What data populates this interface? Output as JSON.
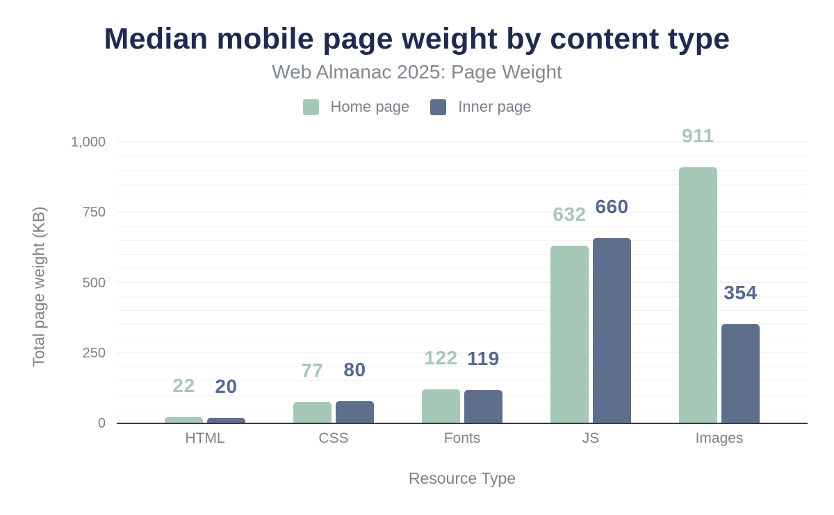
{
  "title": "Median mobile page weight by content type",
  "subtitle": "Web Almanac 2025: Page Weight",
  "colors": {
    "title_text": "#1e2b4e",
    "home_page_accent": "#a6c8b7",
    "inner_page_accent": "#5e6e8d",
    "inner_page_label": "#56698d",
    "home_page_label": "#a6c8b7",
    "axis_line": "#3a3a40"
  },
  "chart_data": {
    "type": "bar",
    "categories": [
      "HTML",
      "CSS",
      "Fonts",
      "JS",
      "Images"
    ],
    "series": [
      {
        "name": "Home page",
        "color": "#a6c8b7",
        "label_color": "#a6c8b7",
        "values": [
          22,
          77,
          122,
          632,
          911
        ]
      },
      {
        "name": "Inner page",
        "color": "#5e6e8d",
        "label_color": "#56698d",
        "values": [
          20,
          80,
          119,
          660,
          354
        ]
      }
    ],
    "xlabel": "Resource Type",
    "ylabel": "Total page weight (KB)",
    "ylim": [
      0,
      1000
    ],
    "yticks": [
      0,
      250,
      500,
      750,
      1000
    ],
    "ytick_labels": [
      "0",
      "250",
      "500",
      "750",
      "1,000"
    ],
    "minor_grid_step": 50,
    "major_grid_step": 250,
    "grid": true,
    "legend_position": "top",
    "data_labels": true
  }
}
